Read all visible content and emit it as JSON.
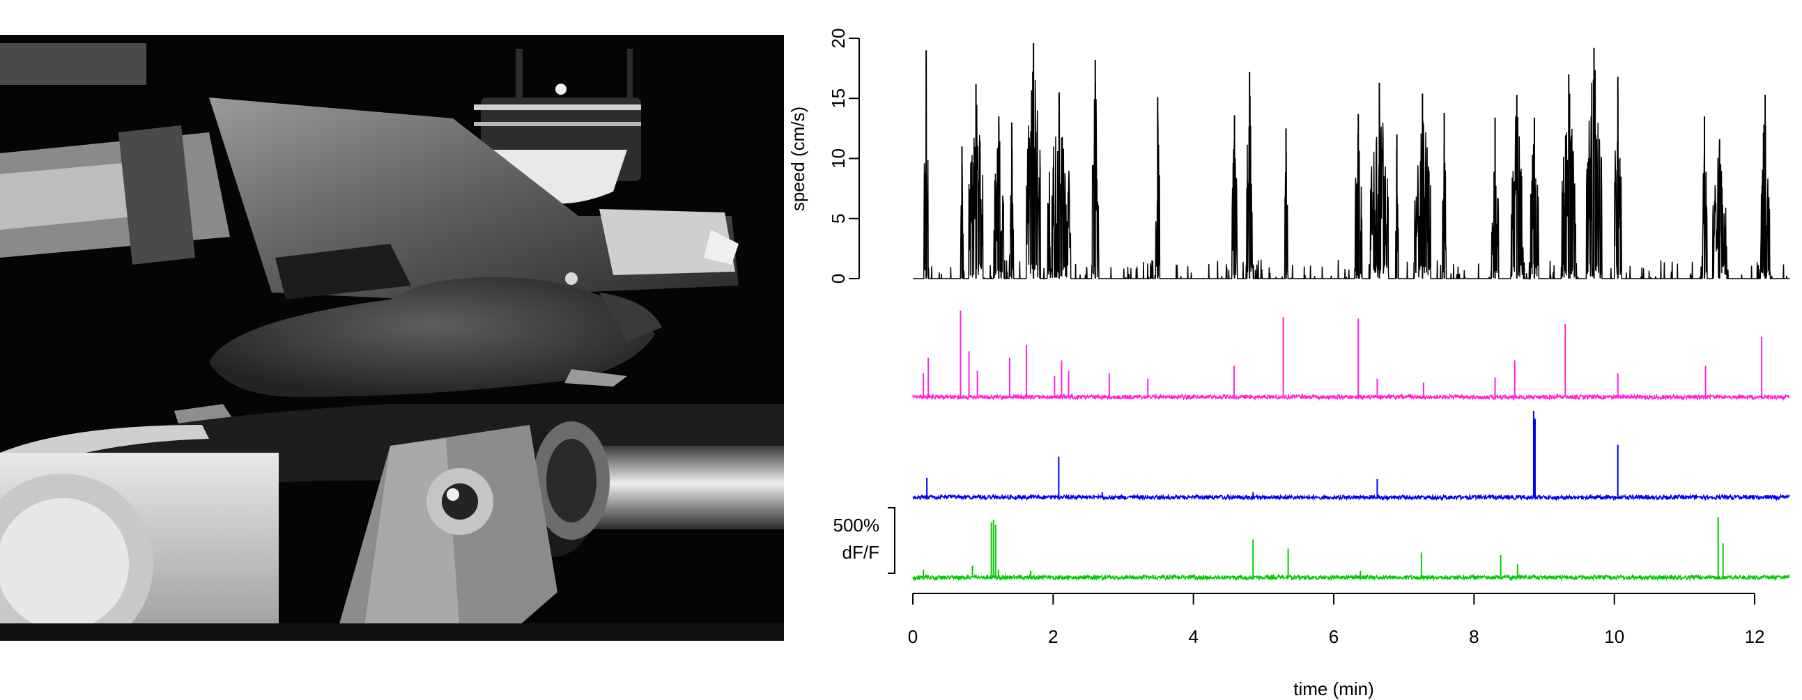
{
  "photo": {
    "subject": "head-fixed mouse on treadmill under microscope objective"
  },
  "chart_data": {
    "type": "line",
    "xlabel": "time (min)",
    "xlim": [
      0,
      12.5
    ],
    "x_ticks": [
      0,
      2,
      4,
      6,
      8,
      10,
      12
    ],
    "speed_panel": {
      "ylabel": "speed (cm/s)",
      "ylim": [
        0,
        20
      ],
      "y_ticks": [
        0,
        5,
        10,
        15,
        20
      ],
      "color": "#000000",
      "baseline": 0,
      "bouts": [
        {
          "start": 0.16,
          "end": 0.22,
          "peak": 19.0
        },
        {
          "start": 0.68,
          "end": 0.72,
          "peak": 11.0
        },
        {
          "start": 0.8,
          "end": 1.0,
          "peak": 16.2
        },
        {
          "start": 1.15,
          "end": 1.3,
          "peak": 13.5
        },
        {
          "start": 1.38,
          "end": 1.44,
          "peak": 13.0
        },
        {
          "start": 1.62,
          "end": 1.82,
          "peak": 19.6
        },
        {
          "start": 1.92,
          "end": 2.25,
          "peak": 15.5
        },
        {
          "start": 2.55,
          "end": 2.65,
          "peak": 18.2
        },
        {
          "start": 3.46,
          "end": 3.52,
          "peak": 15.1
        },
        {
          "start": 4.55,
          "end": 4.62,
          "peak": 13.6
        },
        {
          "start": 4.75,
          "end": 4.85,
          "peak": 17.2
        },
        {
          "start": 5.3,
          "end": 5.34,
          "peak": 12.5
        },
        {
          "start": 6.3,
          "end": 6.4,
          "peak": 13.7
        },
        {
          "start": 6.52,
          "end": 6.78,
          "peak": 16.3
        },
        {
          "start": 6.88,
          "end": 6.92,
          "peak": 12.0
        },
        {
          "start": 7.15,
          "end": 7.38,
          "peak": 15.4
        },
        {
          "start": 7.55,
          "end": 7.6,
          "peak": 13.8
        },
        {
          "start": 8.25,
          "end": 8.35,
          "peak": 13.4
        },
        {
          "start": 8.52,
          "end": 8.7,
          "peak": 15.3
        },
        {
          "start": 8.8,
          "end": 8.92,
          "peak": 13.4
        },
        {
          "start": 9.25,
          "end": 9.45,
          "peak": 17.0
        },
        {
          "start": 9.6,
          "end": 9.82,
          "peak": 19.2
        },
        {
          "start": 10.0,
          "end": 10.1,
          "peak": 16.8
        },
        {
          "start": 11.25,
          "end": 11.32,
          "peak": 13.5
        },
        {
          "start": 11.4,
          "end": 11.6,
          "peak": 11.6
        },
        {
          "start": 12.08,
          "end": 12.22,
          "peak": 15.3
        }
      ]
    },
    "dff_scale_bar": {
      "value": 500,
      "label_line1": "500%",
      "label_line2": "dF/F"
    },
    "series": [
      {
        "color": "#ff22dd",
        "baseline_percent": 0,
        "spikes": [
          {
            "x": 0.15,
            "y": 180
          },
          {
            "x": 0.22,
            "y": 300
          },
          {
            "x": 0.68,
            "y": 660
          },
          {
            "x": 0.8,
            "y": 350
          },
          {
            "x": 0.92,
            "y": 200
          },
          {
            "x": 1.38,
            "y": 300
          },
          {
            "x": 1.62,
            "y": 400
          },
          {
            "x": 2.02,
            "y": 160
          },
          {
            "x": 2.12,
            "y": 280
          },
          {
            "x": 2.22,
            "y": 200
          },
          {
            "x": 2.8,
            "y": 180
          },
          {
            "x": 3.35,
            "y": 140
          },
          {
            "x": 4.58,
            "y": 240
          },
          {
            "x": 5.28,
            "y": 610
          },
          {
            "x": 6.35,
            "y": 600
          },
          {
            "x": 6.62,
            "y": 140
          },
          {
            "x": 7.28,
            "y": 110
          },
          {
            "x": 8.3,
            "y": 150
          },
          {
            "x": 8.58,
            "y": 280
          },
          {
            "x": 9.3,
            "y": 560
          },
          {
            "x": 10.05,
            "y": 180
          },
          {
            "x": 11.3,
            "y": 240
          },
          {
            "x": 12.1,
            "y": 460
          }
        ]
      },
      {
        "color": "#0000ee",
        "baseline_percent": 0,
        "spikes": [
          {
            "x": 0.2,
            "y": 150
          },
          {
            "x": 2.08,
            "y": 310
          },
          {
            "x": 2.7,
            "y": 40
          },
          {
            "x": 4.85,
            "y": 40
          },
          {
            "x": 6.62,
            "y": 140
          },
          {
            "x": 8.85,
            "y": 660
          },
          {
            "x": 8.87,
            "y": 600
          },
          {
            "x": 10.05,
            "y": 400
          }
        ]
      },
      {
        "color": "#00cc00",
        "baseline_percent": 0,
        "spikes": [
          {
            "x": 0.15,
            "y": 60
          },
          {
            "x": 0.85,
            "y": 90
          },
          {
            "x": 1.12,
            "y": 420
          },
          {
            "x": 1.15,
            "y": 440
          },
          {
            "x": 1.18,
            "y": 400
          },
          {
            "x": 1.22,
            "y": 60
          },
          {
            "x": 1.68,
            "y": 50
          },
          {
            "x": 4.85,
            "y": 290
          },
          {
            "x": 5.35,
            "y": 220
          },
          {
            "x": 6.38,
            "y": 50
          },
          {
            "x": 7.25,
            "y": 190
          },
          {
            "x": 8.38,
            "y": 170
          },
          {
            "x": 8.62,
            "y": 100
          },
          {
            "x": 11.48,
            "y": 460
          },
          {
            "x": 11.55,
            "y": 260
          }
        ]
      }
    ]
  }
}
